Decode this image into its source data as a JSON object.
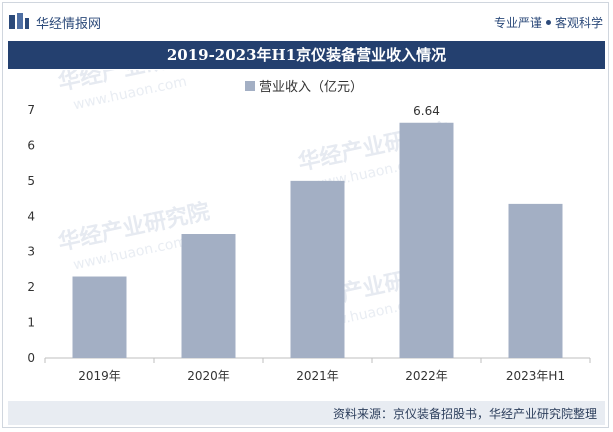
{
  "header": {
    "brand": "华经情报网",
    "tagline_left": "专业严谨",
    "tagline_right": "客观科学"
  },
  "title": "2019-2023年H1京仪装备营业收入情况",
  "footer": {
    "source": "资料来源：京仪装备招股书，华经产业研究院整理"
  },
  "watermark": {
    "text": "华经产业研究院",
    "url": "www.huaon.com"
  },
  "colors": {
    "bar": "#a3afc4",
    "title_bg": "#24406f",
    "brand": "#2c4a7a"
  },
  "chart_data": {
    "type": "bar",
    "categories": [
      "2019年",
      "2020年",
      "2021年",
      "2022年",
      "2023年H1"
    ],
    "series": [
      {
        "name": "营业收入（亿元）",
        "values": [
          2.3,
          3.5,
          5.0,
          6.64,
          4.35
        ]
      }
    ],
    "data_labels": {
      "2022年": "6.64"
    },
    "ylim": [
      0,
      7
    ],
    "yticks": [
      0,
      1,
      2,
      3,
      4,
      5,
      6,
      7
    ],
    "legend": "top-center",
    "grid": false
  }
}
